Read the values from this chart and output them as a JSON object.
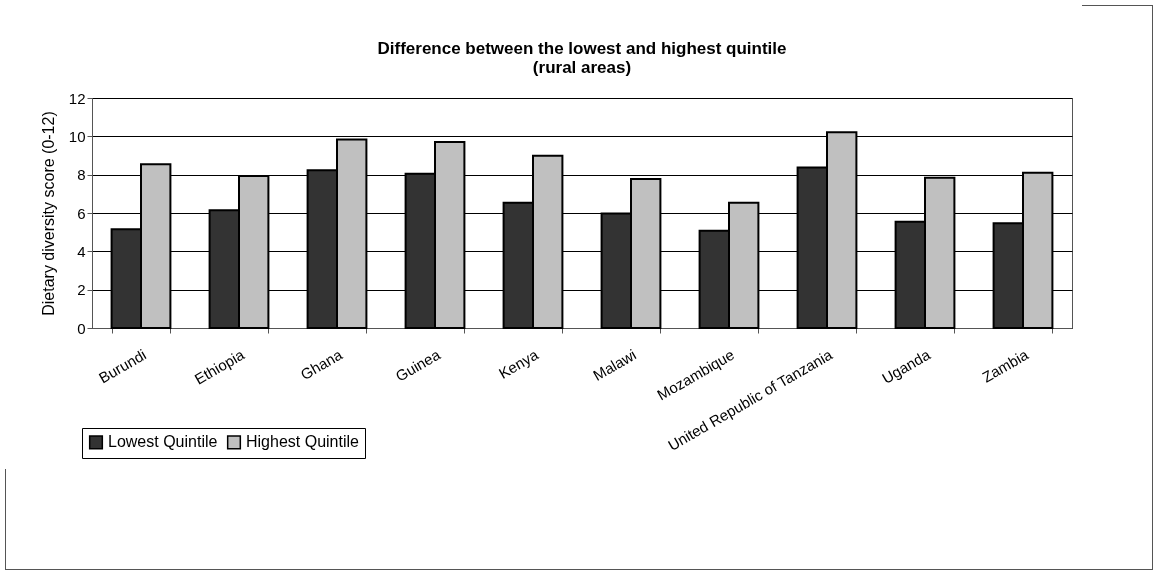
{
  "chart_data": {
    "type": "bar",
    "title": "Difference between the lowest and highest quintile\n(rural areas)",
    "ylabel": "Dietary diversity score (0-12)",
    "categories": [
      "Burundi",
      "Ethiopia",
      "Ghana",
      "Guinea",
      "Kenya",
      "Malawi",
      "Mozambique",
      "United Republic of Tanzania",
      "Uganda",
      "Zambia"
    ],
    "series": [
      {
        "name": "Lowest Quintile",
        "color": "#333333",
        "values": [
          5.15,
          6.14,
          8.23,
          8.05,
          6.54,
          5.98,
          5.08,
          8.38,
          5.55,
          5.46
        ]
      },
      {
        "name": "Highest Quintile",
        "color": "#c0c0c0",
        "values": [
          8.54,
          7.93,
          9.84,
          9.7,
          8.99,
          7.77,
          6.54,
          10.21,
          7.84,
          8.1
        ]
      }
    ],
    "ylim": [
      0,
      12
    ],
    "yticks": [
      0,
      2,
      4,
      6,
      8,
      10,
      12
    ],
    "grid": "y",
    "legend": "bottom left"
  }
}
